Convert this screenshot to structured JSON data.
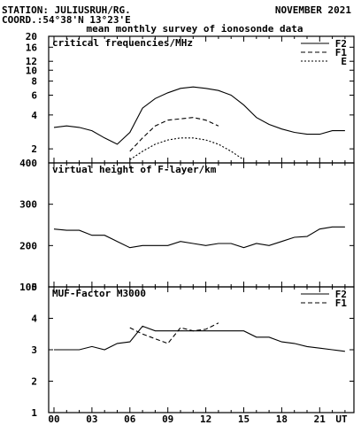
{
  "header": {
    "station": "STATION: JULIUSRUH/RG.",
    "coord": "COORD.:54°38'N 13°23'E",
    "date": "NOVEMBER 2021",
    "subtitle": "mean monthly survey of ionosonde data"
  },
  "colors": {
    "line": "#000000",
    "background": "#ffffff"
  },
  "chart_data": [
    {
      "type": "line",
      "title": "critical frequencies/MHz",
      "yscale": "log",
      "ylim": [
        1.5,
        20
      ],
      "yticks": [
        2,
        4,
        6,
        8,
        10,
        12,
        16,
        20
      ],
      "xlim": [
        0,
        24
      ],
      "x_tick_labels": [
        "00",
        "03",
        "06",
        "09",
        "12",
        "15",
        "18",
        "21",
        "UT"
      ],
      "legend_position": "top-right",
      "series": [
        {
          "name": "F2",
          "style": "solid",
          "x": [
            0,
            1,
            2,
            3,
            4,
            5,
            6,
            7,
            8,
            9,
            10,
            11,
            12,
            13,
            14,
            15,
            16,
            17,
            18,
            19,
            20,
            21,
            22,
            23
          ],
          "values": [
            3.1,
            3.2,
            3.1,
            2.9,
            2.5,
            2.2,
            2.8,
            4.6,
            5.6,
            6.3,
            6.9,
            7.1,
            6.9,
            6.6,
            6.0,
            4.9,
            3.8,
            3.3,
            3.0,
            2.8,
            2.7,
            2.7,
            2.9,
            2.9
          ]
        },
        {
          "name": "F1",
          "style": "dashed",
          "x": [
            6,
            7,
            8,
            9,
            10,
            11,
            12,
            13
          ],
          "values": [
            1.9,
            2.5,
            3.2,
            3.6,
            3.7,
            3.8,
            3.6,
            3.2
          ]
        },
        {
          "name": "E",
          "style": "dotted",
          "x": [
            6,
            7,
            8,
            9,
            10,
            11,
            12,
            13,
            14,
            15
          ],
          "values": [
            1.6,
            1.9,
            2.2,
            2.4,
            2.5,
            2.5,
            2.4,
            2.2,
            1.9,
            1.6
          ]
        }
      ]
    },
    {
      "type": "line",
      "title": "virtual height of F-layer/km",
      "ylim": [
        100,
        400
      ],
      "yticks": [
        100,
        200,
        300,
        400
      ],
      "xlim": [
        0,
        24
      ],
      "series": [
        {
          "style": "solid",
          "x": [
            0,
            1,
            2,
            3,
            4,
            5,
            6,
            7,
            8,
            9,
            10,
            11,
            12,
            13,
            14,
            15,
            16,
            17,
            18,
            19,
            20,
            21,
            22,
            23
          ],
          "values": [
            240,
            237,
            237,
            225,
            225,
            210,
            195,
            200,
            200,
            200,
            210,
            205,
            200,
            205,
            205,
            195,
            205,
            200,
            210,
            220,
            222,
            240,
            245,
            245
          ]
        }
      ]
    },
    {
      "type": "line",
      "title": "MUF-Factor M3000",
      "ylim": [
        1,
        5
      ],
      "yticks": [
        1,
        2,
        3,
        4,
        5
      ],
      "xlim": [
        0,
        24
      ],
      "legend_position": "top-right",
      "series": [
        {
          "name": "F2",
          "style": "solid",
          "x": [
            0,
            1,
            2,
            3,
            4,
            5,
            6,
            7,
            8,
            9,
            10,
            11,
            12,
            13,
            14,
            15,
            16,
            17,
            18,
            19,
            20,
            21,
            22,
            23
          ],
          "values": [
            3.0,
            3.0,
            3.0,
            3.1,
            3.0,
            3.2,
            3.25,
            3.75,
            3.6,
            3.6,
            3.6,
            3.6,
            3.6,
            3.6,
            3.6,
            3.6,
            3.4,
            3.4,
            3.25,
            3.2,
            3.1,
            3.05,
            3.0,
            2.95
          ]
        },
        {
          "name": "F1",
          "style": "dashed",
          "x": [
            6,
            7,
            8,
            9,
            10,
            11,
            12,
            13
          ],
          "values": [
            3.7,
            3.5,
            3.35,
            3.2,
            3.7,
            3.6,
            3.65,
            3.85
          ]
        }
      ]
    }
  ]
}
